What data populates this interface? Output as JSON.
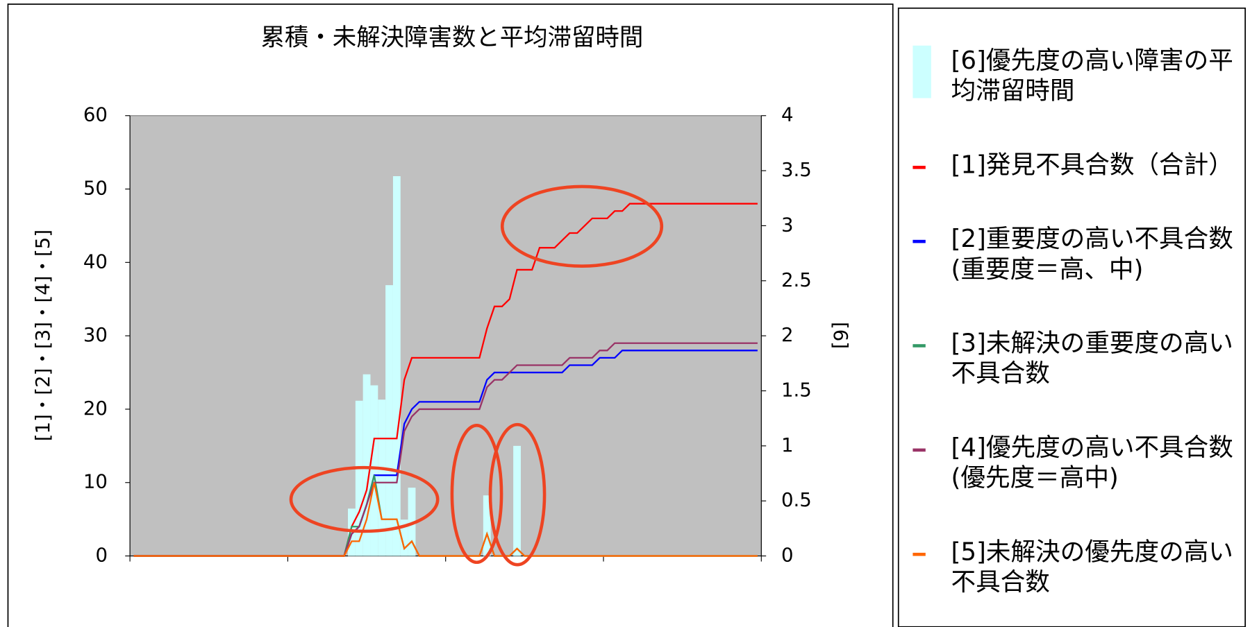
{
  "chart_data": {
    "type": "bar-line",
    "title": "累積・未解決障害数と平均滞留時間",
    "ylabel": "[1]・[2]・[3]・[4]・[5]",
    "y2label": "[6]",
    "categories": [
      null,
      null,
      null,
      null,
      null,
      null,
      null,
      null,
      null,
      null,
      null,
      null,
      null,
      null,
      null,
      null,
      null,
      null,
      null,
      null,
      null,
      null,
      null,
      null,
      null,
      null,
      null,
      null,
      null,
      null,
      null,
      null,
      null,
      null,
      null,
      null,
      null,
      null,
      null,
      null,
      null,
      null,
      null,
      null,
      null,
      null,
      null,
      null,
      null,
      null,
      null,
      null,
      null,
      null,
      null,
      null,
      null,
      null,
      null,
      null,
      null,
      null,
      null,
      null,
      null,
      null,
      null,
      null,
      null,
      null,
      null,
      null,
      null,
      null,
      null,
      null,
      null,
      null,
      null,
      null,
      null,
      null,
      null,
      null
    ],
    "ylim": [
      0,
      60
    ],
    "yticks": [
      0,
      10,
      20,
      30,
      40,
      50,
      60
    ],
    "y2lim": [
      0,
      4
    ],
    "y2ticks": [
      0,
      0.5,
      1,
      1.5,
      2,
      2.5,
      3,
      3.5,
      4
    ],
    "legend": "right",
    "series": [
      {
        "name": "[6]優先度の高い障害の平均滞留時間",
        "type": "bar",
        "axis": "y2",
        "color": "#ccffff",
        "values": [
          0,
          0,
          0,
          0,
          0,
          0,
          0,
          0,
          0,
          0,
          0,
          0,
          0,
          0,
          0,
          0,
          0,
          0,
          0,
          0,
          0,
          0,
          0,
          0,
          0,
          0,
          0,
          0,
          0,
          0.43,
          1.41,
          1.65,
          1.55,
          1.42,
          2.46,
          3.45,
          0.33,
          0.62,
          0,
          0,
          0,
          0,
          0,
          0,
          0,
          0,
          0,
          0.55,
          0,
          0,
          0,
          1,
          0,
          0,
          0,
          0,
          0,
          0,
          0,
          0,
          0,
          0,
          0,
          0,
          0,
          0,
          0,
          0,
          0,
          0,
          0,
          0,
          0,
          0,
          0,
          0,
          0,
          0,
          0,
          0,
          0,
          0,
          0,
          0
        ]
      },
      {
        "name": "[1]発見不具合数（合計）",
        "type": "line",
        "color": "#ff0000",
        "values": [
          0,
          0,
          0,
          0,
          0,
          0,
          0,
          0,
          0,
          0,
          0,
          0,
          0,
          0,
          0,
          0,
          0,
          0,
          0,
          0,
          0,
          0,
          0,
          0,
          0,
          0,
          0,
          0,
          0,
          4,
          6,
          9,
          16,
          16,
          16,
          16,
          24,
          27,
          27,
          27,
          27,
          27,
          27,
          27,
          27,
          27,
          27,
          31,
          34,
          34,
          35,
          39,
          39,
          39,
          42,
          42,
          42,
          43,
          44,
          44,
          45,
          46,
          46,
          46,
          47,
          47,
          48,
          48,
          48,
          48,
          48,
          48,
          48,
          48,
          48,
          48,
          48,
          48,
          48,
          48,
          48,
          48,
          48,
          48
        ]
      },
      {
        "name": "[2]重要度の高い不具合数(重要度＝高、中)",
        "type": "line",
        "color": "#0000ff",
        "values": [
          0,
          0,
          0,
          0,
          0,
          0,
          0,
          0,
          0,
          0,
          0,
          0,
          0,
          0,
          0,
          0,
          0,
          0,
          0,
          0,
          0,
          0,
          0,
          0,
          0,
          0,
          0,
          0,
          0,
          3,
          4,
          7,
          11,
          11,
          11,
          11,
          18,
          20,
          21,
          21,
          21,
          21,
          21,
          21,
          21,
          21,
          21,
          24,
          25,
          25,
          25,
          25,
          25,
          25,
          25,
          25,
          25,
          25,
          26,
          26,
          26,
          26,
          27,
          27,
          27,
          28,
          28,
          28,
          28,
          28,
          28,
          28,
          28,
          28,
          28,
          28,
          28,
          28,
          28,
          28,
          28,
          28,
          28,
          28
        ]
      },
      {
        "name": "[3]未解決の重要度の高い不具合数",
        "type": "line",
        "color": "#339966",
        "values": [
          0,
          0,
          0,
          0,
          0,
          0,
          0,
          0,
          0,
          0,
          0,
          0,
          0,
          0,
          0,
          0,
          0,
          0,
          0,
          0,
          0,
          0,
          0,
          0,
          0,
          0,
          0,
          0,
          0,
          4,
          4,
          7,
          11,
          5,
          5,
          5,
          1,
          2,
          0,
          0,
          0,
          0,
          0,
          0,
          0,
          0,
          0,
          3,
          0,
          0,
          0,
          1,
          0,
          0,
          0,
          0,
          0,
          0,
          0,
          0,
          0,
          0,
          0,
          0,
          0,
          0,
          0,
          0,
          0,
          0,
          0,
          0,
          0,
          0,
          0,
          0,
          0,
          0,
          0,
          0,
          0,
          0,
          0,
          0
        ]
      },
      {
        "name": "[4]優先度の高い不具合数(優先度＝高中)",
        "type": "line",
        "color": "#993366",
        "values": [
          0,
          0,
          0,
          0,
          0,
          0,
          0,
          0,
          0,
          0,
          0,
          0,
          0,
          0,
          0,
          0,
          0,
          0,
          0,
          0,
          0,
          0,
          0,
          0,
          0,
          0,
          0,
          0,
          0,
          3,
          4,
          7,
          10,
          10,
          10,
          10,
          17,
          19,
          20,
          20,
          20,
          20,
          20,
          20,
          20,
          20,
          20,
          23,
          24,
          24,
          25,
          26,
          26,
          26,
          26,
          26,
          26,
          26,
          27,
          27,
          27,
          27,
          28,
          28,
          29,
          29,
          29,
          29,
          29,
          29,
          29,
          29,
          29,
          29,
          29,
          29,
          29,
          29,
          29,
          29,
          29,
          29,
          29,
          29
        ]
      },
      {
        "name": "[5]未解決の優先度の高い不具合数",
        "type": "line",
        "color": "#ff6600",
        "values": [
          0,
          0,
          0,
          0,
          0,
          0,
          0,
          0,
          0,
          0,
          0,
          0,
          0,
          0,
          0,
          0,
          0,
          0,
          0,
          0,
          0,
          0,
          0,
          0,
          0,
          0,
          0,
          0,
          0,
          2,
          2,
          5,
          10,
          5,
          5,
          5,
          1,
          2,
          0,
          0,
          0,
          0,
          0,
          0,
          0,
          0,
          0,
          3,
          0,
          0,
          0,
          1,
          0,
          0,
          0,
          0,
          0,
          0,
          0,
          0,
          0,
          0,
          0,
          0,
          0,
          0,
          0,
          0,
          0,
          0,
          0,
          0,
          0,
          0,
          0,
          0,
          0,
          0,
          0,
          0,
          0,
          0,
          0,
          0
        ]
      }
    ]
  }
}
